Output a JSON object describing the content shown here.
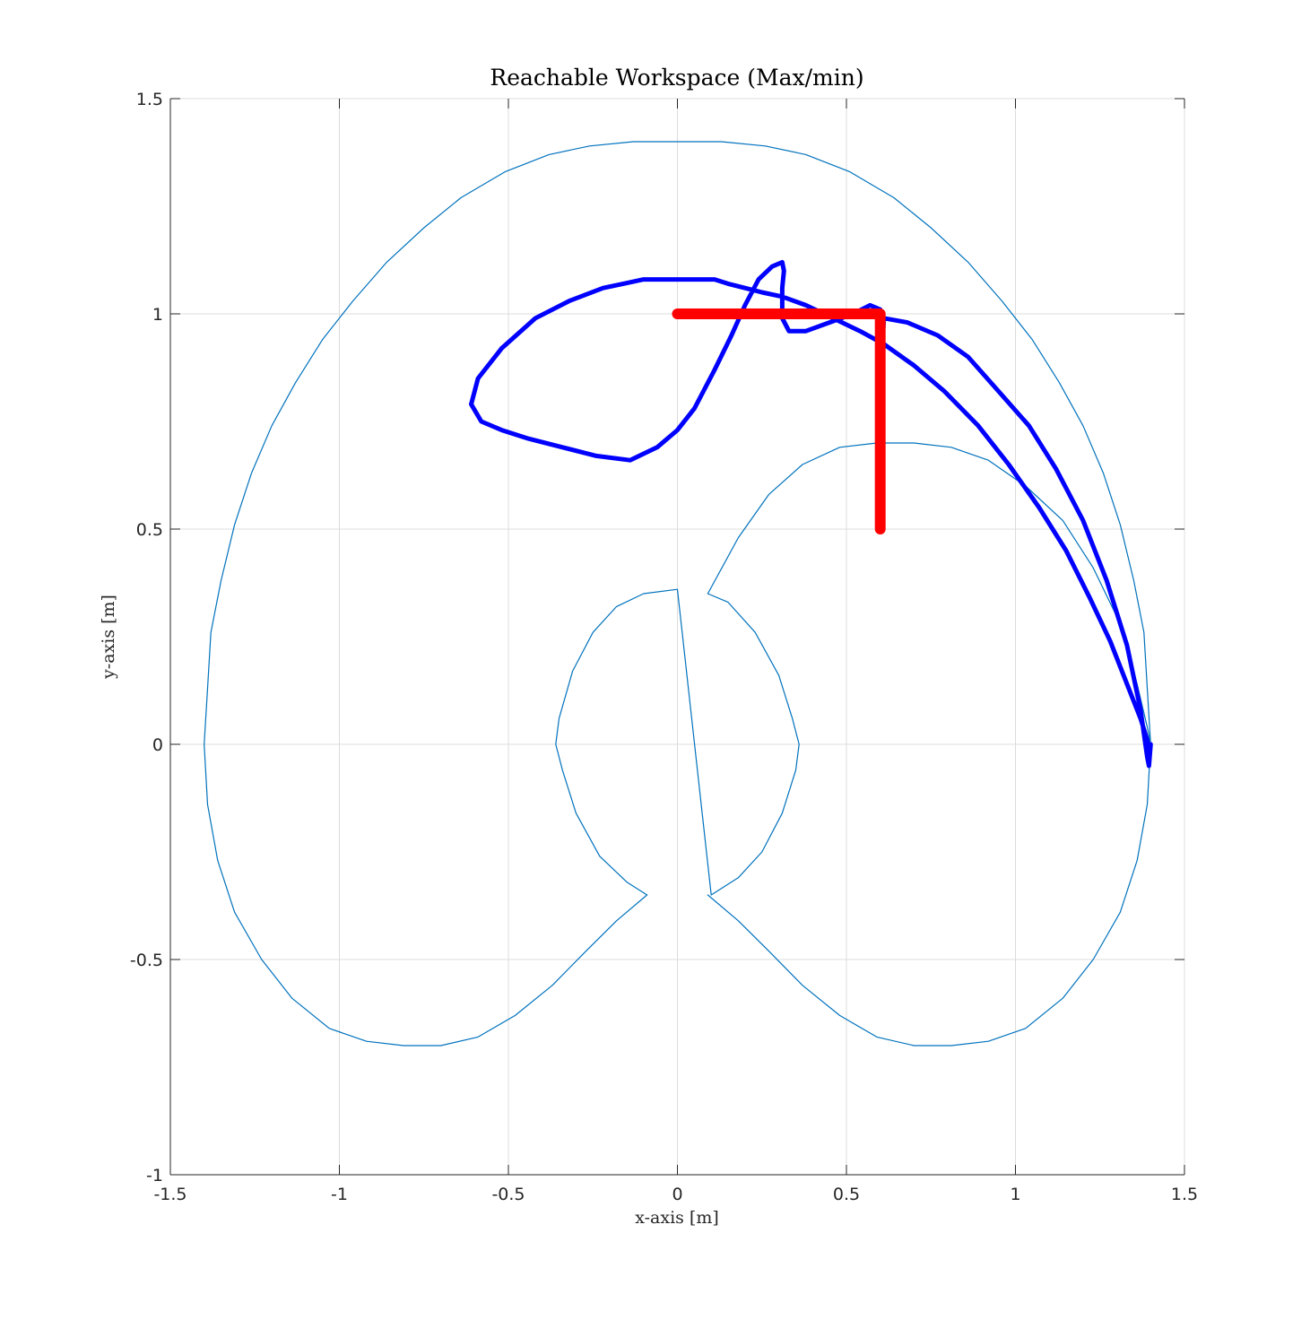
{
  "chart_data": {
    "type": "line",
    "title": "Reachable Workspace (Max/min)",
    "xlabel": "x-axis [m]",
    "ylabel": "y-axis [m]",
    "xlim": [
      -1.5,
      1.5
    ],
    "ylim": [
      -1,
      1.5
    ],
    "xticks": [
      -1.5,
      -1,
      -0.5,
      0,
      0.5,
      1,
      1.5
    ],
    "yticks": [
      -1,
      -0.5,
      0,
      0.5,
      1,
      1.5
    ],
    "xtick_labels": [
      "-1.5",
      "-1",
      "-0.5",
      "0",
      "0.5",
      "1",
      "1.5"
    ],
    "ytick_labels": [
      "-1",
      "-0.5",
      "0",
      "0.5",
      "1",
      "1.5"
    ],
    "grid": true,
    "aspect": "equal",
    "series": [
      {
        "kind": "workspace-boundary",
        "color": "#0072bd",
        "x": [
          1.4,
          1.39,
          1.38,
          1.35,
          1.31,
          1.26,
          1.2,
          1.13,
          1.05,
          0.96,
          0.86,
          0.75,
          0.64,
          0.51,
          0.38,
          0.26,
          0.13,
          0,
          -0.13,
          -0.26,
          -0.38,
          -0.51,
          -0.64,
          -0.75,
          -0.86,
          -0.96,
          -1.05,
          -1.13,
          -1.2,
          -1.26,
          -1.31,
          -1.35,
          -1.38,
          -1.39,
          -1.4,
          -1.39,
          -1.36,
          -1.31,
          -1.23,
          -1.14,
          -1.03,
          -0.92,
          -0.81,
          -0.7,
          -0.59,
          -0.48,
          -0.37,
          -0.27,
          -0.18,
          -0.09
        ],
        "y": [
          0,
          0.13,
          0.26,
          0.38,
          0.51,
          0.63,
          0.74,
          0.84,
          0.94,
          1.03,
          1.12,
          1.2,
          1.27,
          1.33,
          1.37,
          1.39,
          1.4,
          1.4,
          1.4,
          1.39,
          1.37,
          1.33,
          1.27,
          1.2,
          1.12,
          1.03,
          0.94,
          0.84,
          0.74,
          0.63,
          0.51,
          0.38,
          0.26,
          0.13,
          0,
          -0.14,
          -0.27,
          -0.39,
          -0.5,
          -0.59,
          -0.66,
          -0.69,
          -0.7,
          -0.7,
          -0.68,
          -0.63,
          -0.56,
          -0.48,
          -0.41,
          -0.35
        ]
      },
      {
        "kind": "workspace-boundary",
        "color": "#0072bd",
        "x": [
          0.09,
          0.18,
          0.27,
          0.37,
          0.48,
          0.59,
          0.7,
          0.81,
          0.92,
          1.03,
          1.14,
          1.23,
          1.31,
          1.36,
          1.39,
          1.4,
          1.39,
          1.36,
          1.31,
          1.23,
          1.14,
          1.03,
          0.92,
          0.81,
          0.7,
          0.59,
          0.48,
          0.37,
          0.27,
          0.18,
          0.09
        ],
        "y": [
          0.35,
          0.48,
          0.58,
          0.65,
          0.69,
          0.7,
          0.7,
          0.69,
          0.66,
          0.6,
          0.52,
          0.41,
          0.28,
          0.14,
          0.04,
          0,
          -0.14,
          -0.27,
          -0.39,
          -0.5,
          -0.59,
          -0.66,
          -0.69,
          -0.7,
          -0.7,
          -0.68,
          -0.63,
          -0.56,
          -0.48,
          -0.41,
          -0.35
        ]
      },
      {
        "kind": "workspace-boundary",
        "color": "#0072bd",
        "x": [
          0.09,
          0.15,
          0.23,
          0.3,
          0.34,
          0.36,
          0.35,
          0.31,
          0.25,
          0.18,
          0.1,
          0,
          -0.1,
          -0.18,
          -0.25,
          -0.31,
          -0.35,
          -0.36,
          -0.34,
          -0.3,
          -0.23,
          -0.15,
          -0.09
        ],
        "y": [
          0.35,
          0.33,
          0.26,
          0.16,
          0.06,
          0,
          -0.06,
          -0.16,
          -0.25,
          -0.31,
          -0.35,
          0.36,
          0.35,
          0.32,
          0.26,
          0.17,
          0.06,
          0,
          -0.06,
          -0.16,
          -0.26,
          -0.32,
          -0.35
        ]
      },
      {
        "kind": "end-effector-path",
        "color": "#0000ff",
        "x": [
          1.4,
          1.395,
          1.39,
          1.37,
          1.33,
          1.27,
          1.2,
          1.12,
          1.04,
          0.95,
          0.86,
          0.77,
          0.68,
          0.61,
          0.6,
          0.6,
          0.6,
          0.6,
          0.61,
          0.6,
          0.57,
          0.52,
          0.45,
          0.38,
          0.33,
          0.31,
          0.31,
          0.315,
          0.31,
          0.28,
          0.24,
          0.2,
          0.16,
          0.11,
          0.05,
          0,
          -0.06,
          -0.14,
          -0.24,
          -0.34,
          -0.44,
          -0.52,
          -0.58,
          -0.61,
          -0.59,
          -0.52,
          -0.42,
          -0.32,
          -0.22,
          -0.16,
          -0.1,
          -0.04,
          0,
          0.04,
          0.07,
          0.11,
          0.15,
          0.2,
          0.25,
          0.31,
          0.38,
          0.46,
          0.54,
          0.61,
          0.7,
          0.79,
          0.89,
          0.98,
          1.07,
          1.15,
          1.22,
          1.28,
          1.33,
          1.37,
          1.39,
          1.395,
          1.4
        ],
        "y": [
          0,
          -0.05,
          -0.03,
          0.08,
          0.23,
          0.38,
          0.52,
          0.64,
          0.74,
          0.82,
          0.9,
          0.95,
          0.98,
          0.99,
          0.9,
          0.8,
          0.65,
          0.85,
          0.98,
          1.01,
          1.02,
          1.0,
          0.98,
          0.96,
          0.96,
          0.99,
          1.06,
          1.1,
          1.12,
          1.11,
          1.08,
          1.02,
          0.95,
          0.87,
          0.78,
          0.73,
          0.69,
          0.66,
          0.67,
          0.69,
          0.71,
          0.73,
          0.75,
          0.79,
          0.85,
          0.92,
          0.99,
          1.03,
          1.06,
          1.07,
          1.08,
          1.08,
          1.08,
          1.08,
          1.08,
          1.08,
          1.07,
          1.06,
          1.05,
          1.04,
          1.02,
          0.99,
          0.96,
          0.93,
          0.88,
          0.82,
          0.74,
          0.65,
          0.55,
          0.45,
          0.34,
          0.24,
          0.14,
          0.06,
          0.01,
          -0.03,
          0
        ]
      },
      {
        "kind": "desired-path",
        "color": "#ff0000",
        "x": [
          0,
          0.6,
          0.6
        ],
        "y": [
          1,
          1,
          0.5
        ]
      }
    ]
  }
}
